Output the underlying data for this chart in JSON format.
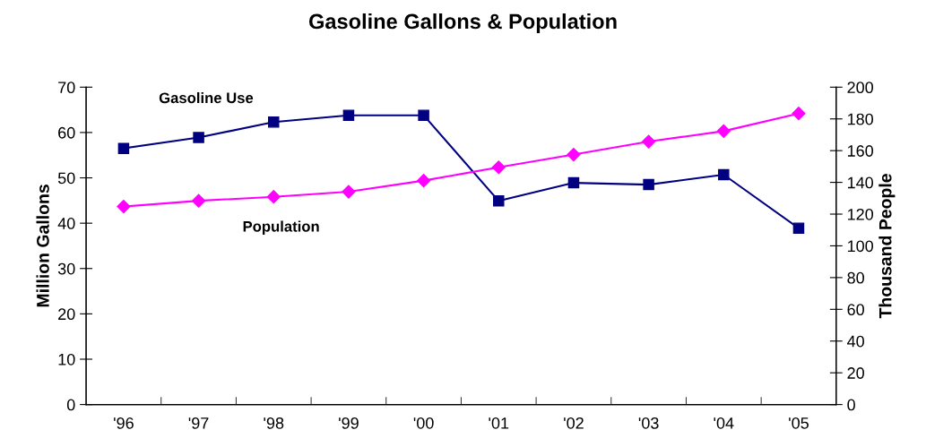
{
  "chart_data": {
    "type": "line",
    "title": "Gasoline Gallons & Population",
    "ylabel": "Million Gallons",
    "y2label": "Thousand People",
    "categories": [
      "'96",
      "'97",
      "'98",
      "'99",
      "'00",
      "'01",
      "'02",
      "'03",
      "'04",
      "'05"
    ],
    "series": [
      {
        "name": "Gasoline Use",
        "color": "#000080",
        "marker": "square",
        "values": [
          56.5,
          58.9,
          62.3,
          63.8,
          63.8,
          44.9,
          48.9,
          48.5,
          50.7,
          38.9
        ]
      },
      {
        "name": "Population",
        "color": "#ff00ff",
        "marker": "diamond",
        "axis": "y2",
        "values": [
          124.8,
          128.4,
          130.9,
          134.1,
          141.1,
          149.5,
          157.5,
          165.7,
          172.3,
          183.4
        ]
      }
    ],
    "ylim": [
      0,
      70
    ],
    "yticks": [
      0,
      10,
      20,
      30,
      40,
      50,
      60,
      70
    ],
    "y2lim": [
      0,
      200
    ],
    "y2ticks": [
      0,
      20,
      40,
      60,
      80,
      100,
      120,
      140,
      160,
      180,
      200
    ],
    "grid": false,
    "legend": false
  }
}
